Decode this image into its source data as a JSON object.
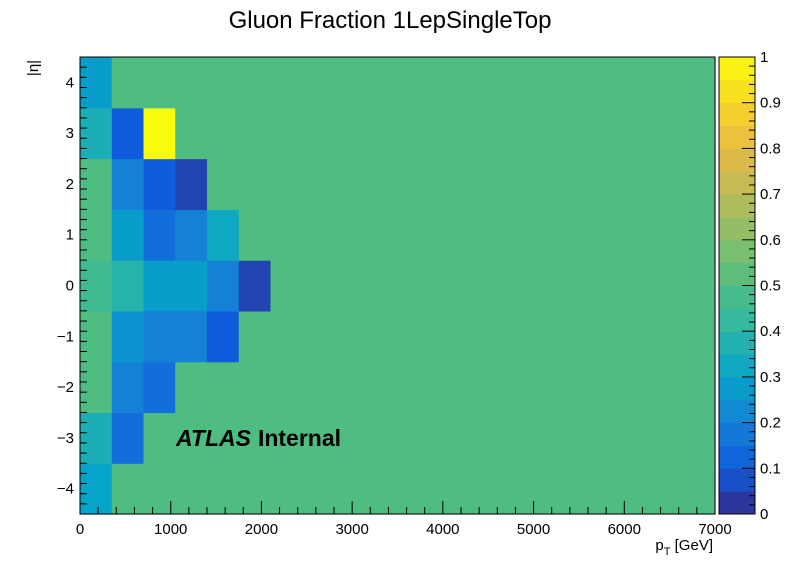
{
  "chart_data": {
    "type": "heatmap",
    "title": "Gluon Fraction 1LepSingleTop",
    "xlabel": "p_T [GeV]",
    "ylabel": "|η|",
    "xlim": [
      0,
      7000
    ],
    "ylim": [
      -4.5,
      4.5
    ],
    "zlim": [
      0,
      1
    ],
    "x_ticks": [
      0,
      1000,
      2000,
      3000,
      4000,
      5000,
      6000,
      7000
    ],
    "y_ticks": [
      -4,
      -3,
      -2,
      -1,
      0,
      1,
      2,
      3,
      4
    ],
    "z_ticks": [
      0,
      0.1,
      0.2,
      0.3,
      0.4,
      0.5,
      0.6,
      0.7,
      0.8,
      0.9,
      1
    ],
    "y_tick_labels": [
      "−4",
      "−3",
      "−2",
      "−1",
      "0",
      "1",
      "2",
      "3",
      "4"
    ],
    "z_tick_labels": [
      "0",
      "0.1",
      "0.2",
      "0.3",
      "0.4",
      "0.5",
      "0.6",
      "0.7",
      "0.8",
      "0.9",
      "1"
    ],
    "x_bin_edges": [
      0,
      350,
      700,
      1050,
      1400,
      1750,
      2100,
      7000
    ],
    "y_bin_edges": [
      -4.5,
      -3.5,
      -2.5,
      -1.5,
      -0.5,
      0.5,
      1.5,
      2.5,
      3.5,
      4.5
    ],
    "x_bins_order": "low-to-high",
    "y_bins_order": "bottom-to-top",
    "values": [
      [
        0.3,
        0.5,
        0.5,
        0.5,
        0.5,
        0.5,
        0.5
      ],
      [
        0.35,
        0.15,
        0.5,
        0.5,
        0.5,
        0.5,
        0.5
      ],
      [
        0.5,
        0.2,
        0.15,
        0.5,
        0.5,
        0.5,
        0.5
      ],
      [
        0.5,
        0.25,
        0.2,
        0.2,
        0.1,
        0.5,
        0.5
      ],
      [
        0.45,
        0.38,
        0.28,
        0.28,
        0.2,
        0.05,
        0.5
      ],
      [
        0.5,
        0.28,
        0.15,
        0.2,
        0.32,
        0.5,
        0.5
      ],
      [
        0.5,
        0.2,
        0.1,
        0.05,
        0.5,
        0.5,
        0.5
      ],
      [
        0.35,
        0.1,
        1.0,
        0.5,
        0.5,
        0.5,
        0.5
      ],
      [
        0.28,
        0.5,
        0.5,
        0.5,
        0.5,
        0.5,
        0.5
      ]
    ],
    "annotation_bold_italic": "ATLAS",
    "annotation_bold": "Internal",
    "grid": false,
    "palette": [
      "#352a87",
      "#0f5cdd",
      "#1481d6",
      "#06a4ca",
      "#2eb7a4",
      "#4fbd82",
      "#87bf6a",
      "#bbbc57",
      "#e6b945",
      "#f8d726",
      "#f9fb0e"
    ]
  }
}
